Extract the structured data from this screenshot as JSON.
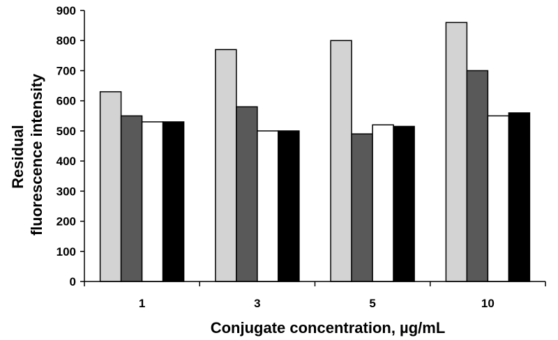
{
  "chart_data": {
    "type": "bar",
    "title": "",
    "xlabel": "Conjugate concentration, µg/mL",
    "ylabel_lines": [
      "Residual",
      "fluorescence intensity"
    ],
    "categories": [
      "1",
      "3",
      "5",
      "10"
    ],
    "ylim": [
      0,
      900
    ],
    "yticks": [
      0,
      100,
      200,
      300,
      400,
      500,
      600,
      700,
      800,
      900
    ],
    "grid": false,
    "legend": "none",
    "series": [
      {
        "color": "#d3d3d3",
        "values": [
          630,
          770,
          800,
          860
        ]
      },
      {
        "color": "#595959",
        "values": [
          550,
          580,
          490,
          700
        ]
      },
      {
        "color": "#ffffff",
        "values": [
          530,
          500,
          520,
          550
        ]
      },
      {
        "color": "#000000",
        "values": [
          530,
          500,
          515,
          560
        ]
      }
    ]
  }
}
